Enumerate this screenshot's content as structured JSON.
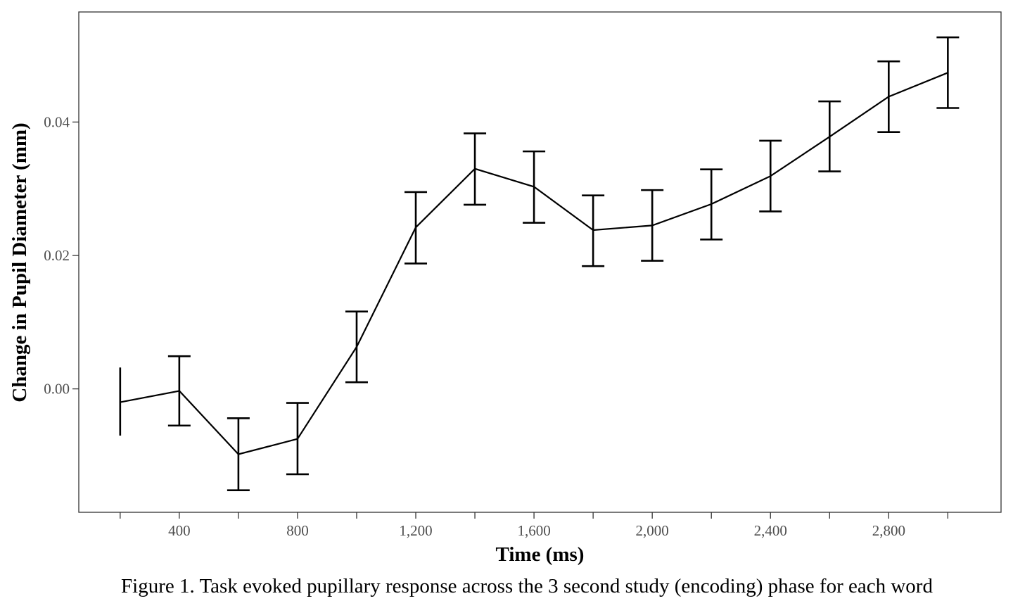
{
  "chart_data": {
    "type": "line",
    "xlabel": "Time (ms)",
    "ylabel": "Change in Pupil Diameter (mm)",
    "caption": "Figure 1. Task evoked pupillary response across the 3 second study (encoding) phase for each word",
    "x": [
      200,
      400,
      600,
      800,
      1000,
      1200,
      1400,
      1600,
      1800,
      2000,
      2200,
      2400,
      2600,
      2800,
      3000
    ],
    "y": [
      -0.002,
      -0.0003,
      -0.0098,
      -0.0075,
      0.0063,
      0.0242,
      0.033,
      0.0303,
      0.0238,
      0.0245,
      0.0277,
      0.0319,
      0.0378,
      0.0438,
      0.0474
    ],
    "error_low": [
      -0.007,
      -0.0055,
      -0.0152,
      -0.0128,
      0.001,
      0.0188,
      0.0276,
      0.0249,
      0.0184,
      0.0192,
      0.0224,
      0.0266,
      0.0326,
      0.0385,
      0.0421
    ],
    "error_high": [
      0.0032,
      0.0049,
      -0.0044,
      -0.0021,
      0.0116,
      0.0295,
      0.0383,
      0.0356,
      0.029,
      0.0298,
      0.0329,
      0.0372,
      0.0431,
      0.0491,
      0.0527
    ],
    "x_ticks": [
      200,
      400,
      600,
      800,
      1000,
      1200,
      1400,
      1600,
      1800,
      2000,
      2200,
      2400,
      2600,
      2800,
      3000
    ],
    "x_tick_labels": [
      "",
      "400",
      "",
      "800",
      "",
      "1,200",
      "",
      "1,600",
      "",
      "2,000",
      "",
      "2,400",
      "",
      "2,800",
      ""
    ],
    "y_ticks": [
      0,
      0.02,
      0.04
    ],
    "y_tick_labels": [
      "0.00",
      "0.02",
      "0.04"
    ],
    "xlim": [
      60,
      3180
    ],
    "ylim": [
      -0.0185,
      0.0565
    ],
    "grid": false,
    "line_color": "#000000"
  }
}
